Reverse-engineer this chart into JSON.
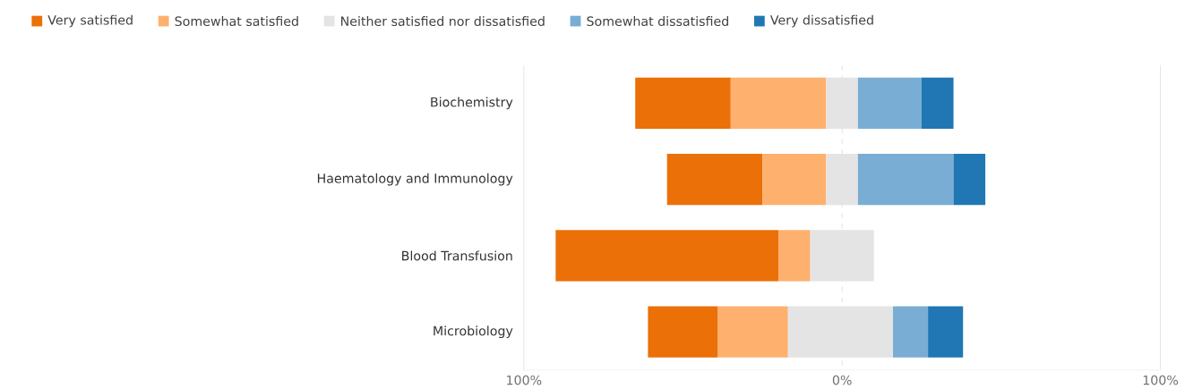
{
  "chart_data": {
    "type": "bar",
    "orientation": "horizontal",
    "categories": [
      "Biochemistry",
      "Haematology and Immunology",
      "Blood Transfusion",
      "Microbiology"
    ],
    "series": [
      {
        "name": "Very satisfied",
        "color": "#eb7008",
        "base": [
          -65,
          -55,
          -90,
          -61
        ],
        "values": [
          30,
          30,
          70,
          22
        ]
      },
      {
        "name": "Somewhat satisfied",
        "color": "#feb06e",
        "base": [
          -35,
          -25,
          -20,
          -39
        ],
        "values": [
          30,
          20,
          10,
          22
        ]
      },
      {
        "name": "Neither satisfied nor dissatisfied",
        "color": "#e4e4e4",
        "base": [
          -5,
          -5,
          -10,
          -17
        ],
        "values": [
          10,
          10,
          20,
          33
        ]
      },
      {
        "name": "Somewhat dissatisfied",
        "color": "#79add3",
        "base": [
          5,
          5,
          null,
          16
        ],
        "values": [
          20,
          30,
          null,
          11
        ]
      },
      {
        "name": "Very dissatisfied",
        "color": "#2077b4",
        "base": [
          25,
          35,
          null,
          27
        ],
        "values": [
          10,
          10,
          null,
          11
        ]
      }
    ],
    "xlim": [
      -100,
      100
    ],
    "xticks": [
      {
        "value": -100,
        "label": "100%"
      },
      {
        "value": 0,
        "label": "0%"
      },
      {
        "value": 100,
        "label": "100%"
      }
    ],
    "ref_lines": [
      {
        "axis": "x",
        "value": 0,
        "line_style": "dashed",
        "color": "#e0e0e0"
      }
    ],
    "legend": "top"
  }
}
